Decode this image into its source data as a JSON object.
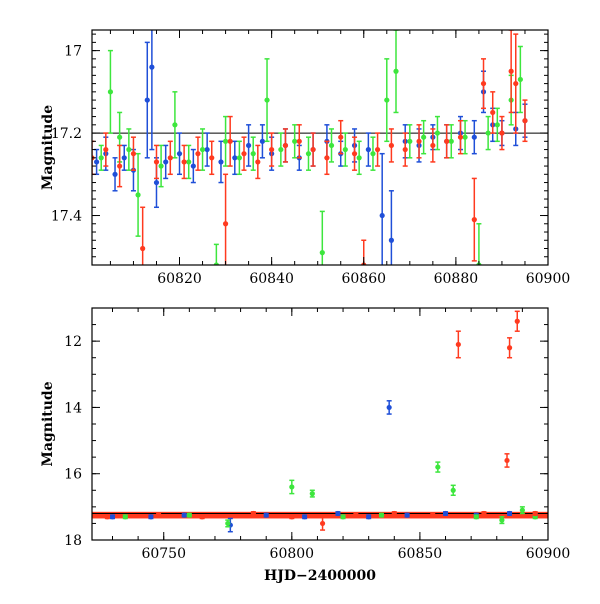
{
  "colors": {
    "blue": "#1f4fd8",
    "green": "#3de63d",
    "red": "#ff3a1f",
    "frame": "#000000"
  },
  "chart_data": [
    {
      "type": "scatter",
      "title": "",
      "xlabel": "",
      "ylabel": "Magnitude",
      "xlim": [
        60801,
        60900
      ],
      "ylim": [
        16.95,
        17.52
      ],
      "y_inverted": true,
      "grid": false,
      "reference_line_y": 17.2,
      "xticks": [
        60820,
        60840,
        60860,
        60880,
        60900
      ],
      "xtick_labels": [
        "60820",
        "60840",
        "60860",
        "60880",
        "60900"
      ],
      "yticks": [
        17,
        17.2,
        17.4
      ],
      "ytick_labels": [
        "17",
        "17.2",
        "17.4"
      ],
      "series": [
        {
          "color_key": "blue",
          "points": [
            [
              60802,
              17.27,
              0.03
            ],
            [
              60804,
              17.25,
              0.04
            ],
            [
              60806,
              17.3,
              0.04
            ],
            [
              60808,
              17.26,
              0.03
            ],
            [
              60810,
              17.29,
              0.05
            ],
            [
              60813,
              17.12,
              0.14
            ],
            [
              60814,
              17.04,
              0.2
            ],
            [
              60815,
              17.32,
              0.06
            ],
            [
              60817,
              17.27,
              0.04
            ],
            [
              60820,
              17.25,
              0.05
            ],
            [
              60823,
              17.28,
              0.04
            ],
            [
              60826,
              17.24,
              0.04
            ],
            [
              60829,
              17.27,
              0.05
            ],
            [
              60832,
              17.26,
              0.04
            ],
            [
              60835,
              17.23,
              0.05
            ],
            [
              60838,
              17.22,
              0.04
            ],
            [
              60840,
              17.25,
              0.04
            ],
            [
              60843,
              17.23,
              0.04
            ],
            [
              60846,
              17.26,
              0.03
            ],
            [
              60849,
              17.24,
              0.04
            ],
            [
              60852,
              17.22,
              0.04
            ],
            [
              60855,
              17.25,
              0.03
            ],
            [
              60858,
              17.23,
              0.04
            ],
            [
              60861,
              17.24,
              0.04
            ],
            [
              60864,
              17.4,
              0.15
            ],
            [
              60866,
              17.46,
              0.12
            ],
            [
              60869,
              17.22,
              0.04
            ],
            [
              60872,
              17.23,
              0.04
            ],
            [
              60875,
              17.21,
              0.03
            ],
            [
              60878,
              17.22,
              0.04
            ],
            [
              60881,
              17.2,
              0.04
            ],
            [
              60884,
              17.21,
              0.04
            ],
            [
              60886,
              17.1,
              0.05
            ],
            [
              60888,
              17.18,
              0.04
            ],
            [
              60890,
              17.2,
              0.03
            ],
            [
              60893,
              17.19,
              0.04
            ],
            [
              60895,
              17.17,
              0.04
            ]
          ]
        },
        {
          "color_key": "green",
          "points": [
            [
              60803,
              17.26,
              0.03
            ],
            [
              60805,
              17.1,
              0.1
            ],
            [
              60807,
              17.21,
              0.06
            ],
            [
              60809,
              17.24,
              0.05
            ],
            [
              60811,
              17.35,
              0.1
            ],
            [
              60816,
              17.28,
              0.05
            ],
            [
              60819,
              17.18,
              0.08
            ],
            [
              60822,
              17.27,
              0.04
            ],
            [
              60825,
              17.24,
              0.05
            ],
            [
              60828,
              17.52,
              0.05
            ],
            [
              60830,
              17.22,
              0.06
            ],
            [
              60833,
              17.26,
              0.04
            ],
            [
              60836,
              17.25,
              0.04
            ],
            [
              60839,
              17.12,
              0.1
            ],
            [
              60842,
              17.24,
              0.04
            ],
            [
              60845,
              17.22,
              0.04
            ],
            [
              60848,
              17.25,
              0.04
            ],
            [
              60851,
              17.49,
              0.1
            ],
            [
              60853,
              17.23,
              0.04
            ],
            [
              60856,
              17.24,
              0.04
            ],
            [
              60859,
              17.26,
              0.04
            ],
            [
              60862,
              17.25,
              0.04
            ],
            [
              60865,
              17.12,
              0.1
            ],
            [
              60867,
              17.05,
              0.1
            ],
            [
              60870,
              17.22,
              0.04
            ],
            [
              60873,
              17.21,
              0.04
            ],
            [
              60876,
              17.2,
              0.04
            ],
            [
              60879,
              17.22,
              0.04
            ],
            [
              60882,
              17.21,
              0.04
            ],
            [
              60885,
              17.52,
              0.1
            ],
            [
              60887,
              17.2,
              0.04
            ],
            [
              60889,
              17.18,
              0.04
            ],
            [
              60892,
              17.12,
              0.06
            ],
            [
              60894,
              17.07,
              0.08
            ]
          ]
        },
        {
          "color_key": "red",
          "points": [
            [
              60801,
              17.26,
              0.04
            ],
            [
              60804,
              17.24,
              0.04
            ],
            [
              60807,
              17.28,
              0.05
            ],
            [
              60810,
              17.25,
              0.04
            ],
            [
              60812,
              17.48,
              0.1
            ],
            [
              60815,
              17.27,
              0.04
            ],
            [
              60818,
              17.26,
              0.04
            ],
            [
              60821,
              17.27,
              0.04
            ],
            [
              60824,
              17.25,
              0.04
            ],
            [
              60827,
              17.26,
              0.04
            ],
            [
              60830,
              17.42,
              0.12
            ],
            [
              60831,
              17.22,
              0.06
            ],
            [
              60834,
              17.25,
              0.04
            ],
            [
              60837,
              17.27,
              0.04
            ],
            [
              60840,
              17.24,
              0.04
            ],
            [
              60843,
              17.23,
              0.04
            ],
            [
              60846,
              17.22,
              0.04
            ],
            [
              60849,
              17.24,
              0.04
            ],
            [
              60852,
              17.26,
              0.04
            ],
            [
              60855,
              17.21,
              0.04
            ],
            [
              60858,
              17.25,
              0.04
            ],
            [
              60860,
              17.52,
              0.06
            ],
            [
              60863,
              17.24,
              0.04
            ],
            [
              60866,
              17.23,
              0.04
            ],
            [
              60869,
              17.24,
              0.04
            ],
            [
              60872,
              17.22,
              0.04
            ],
            [
              60875,
              17.23,
              0.04
            ],
            [
              60878,
              17.22,
              0.04
            ],
            [
              60881,
              17.21,
              0.04
            ],
            [
              60884,
              17.41,
              0.1
            ],
            [
              60886,
              17.08,
              0.06
            ],
            [
              60888,
              17.15,
              0.05
            ],
            [
              60890,
              17.2,
              0.04
            ],
            [
              60892,
              17.05,
              0.1
            ],
            [
              60893,
              17.08,
              0.12
            ],
            [
              60895,
              17.17,
              0.05
            ]
          ]
        }
      ]
    },
    {
      "type": "scatter",
      "title": "",
      "xlabel": "HJD−2400000",
      "ylabel": "Magnitude",
      "xlim": [
        60722,
        60900
      ],
      "ylim": [
        11.0,
        18.0
      ],
      "y_inverted": true,
      "grid": false,
      "reference_line_y": 17.2,
      "xticks": [
        60750,
        60800,
        60850,
        60900
      ],
      "xtick_labels": [
        "60750",
        "60800",
        "60850",
        "60900"
      ],
      "yticks": [
        12,
        14,
        16,
        18
      ],
      "ytick_labels": [
        "12",
        "14",
        "16",
        "18"
      ],
      "series": [
        {
          "color_key": "blue",
          "points": [
            [
              60730,
              17.3,
              0.05
            ],
            [
              60745,
              17.3,
              0.05
            ],
            [
              60758,
              17.25,
              0.05
            ],
            [
              60776,
              17.55,
              0.2
            ],
            [
              60790,
              17.25,
              0.05
            ],
            [
              60805,
              17.3,
              0.05
            ],
            [
              60818,
              17.2,
              0.05
            ],
            [
              60830,
              17.3,
              0.05
            ],
            [
              60838,
              14.0,
              0.2
            ],
            [
              60845,
              17.25,
              0.05
            ],
            [
              60860,
              17.2,
              0.05
            ],
            [
              60872,
              17.25,
              0.05
            ],
            [
              60885,
              17.2,
              0.05
            ],
            [
              60895,
              17.25,
              0.05
            ]
          ]
        },
        {
          "color_key": "green",
          "points": [
            [
              60735,
              17.3,
              0.05
            ],
            [
              60760,
              17.25,
              0.05
            ],
            [
              60775,
              17.5,
              0.1
            ],
            [
              60800,
              16.4,
              0.2
            ],
            [
              60808,
              16.6,
              0.1
            ],
            [
              60820,
              17.3,
              0.05
            ],
            [
              60835,
              17.25,
              0.05
            ],
            [
              60857,
              15.8,
              0.15
            ],
            [
              60863,
              16.5,
              0.15
            ],
            [
              60872,
              17.3,
              0.05
            ],
            [
              60882,
              17.4,
              0.1
            ],
            [
              60890,
              17.1,
              0.1
            ],
            [
              60895,
              17.3,
              0.05
            ]
          ]
        },
        {
          "color_key": "red",
          "points": [
            [
              60728,
              17.3,
              0.05
            ],
            [
              60748,
              17.25,
              0.05
            ],
            [
              60765,
              17.3,
              0.05
            ],
            [
              60785,
              17.2,
              0.05
            ],
            [
              60800,
              17.3,
              0.05
            ],
            [
              60812,
              17.5,
              0.2
            ],
            [
              60825,
              17.25,
              0.05
            ],
            [
              60840,
              17.2,
              0.05
            ],
            [
              60855,
              17.25,
              0.05
            ],
            [
              60865,
              12.1,
              0.4
            ],
            [
              60875,
              17.2,
              0.05
            ],
            [
              60884,
              15.6,
              0.2
            ],
            [
              60885,
              12.2,
              0.3
            ],
            [
              60888,
              11.4,
              0.3
            ],
            [
              60895,
              17.2,
              0.05
            ]
          ]
        }
      ],
      "band": {
        "from": 60722,
        "to": 60900,
        "y": 17.25,
        "halfwidth": 0.1
      }
    }
  ]
}
